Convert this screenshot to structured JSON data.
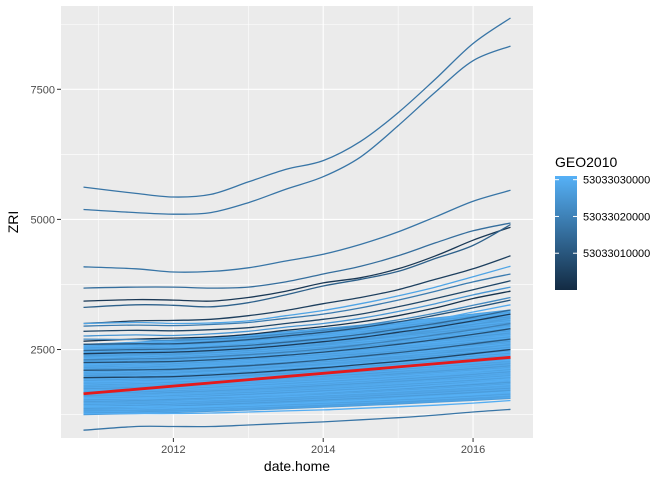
{
  "chart_data": {
    "type": "line",
    "xlabel": "date.home",
    "ylabel": "ZRI",
    "x_start": "2010-10",
    "x_end": "2016-07",
    "xlim": [
      2010.5,
      2016.8
    ],
    "ylim": [
      800,
      9100
    ],
    "x_ticks": [
      {
        "value": 2012,
        "label": "2012"
      },
      {
        "value": 2014,
        "label": "2014"
      },
      {
        "value": 2016,
        "label": "2016"
      }
    ],
    "y_ticks": [
      {
        "value": 2500,
        "label": "2500"
      },
      {
        "value": 5000,
        "label": "5000"
      },
      {
        "value": 7500,
        "label": "7500"
      }
    ],
    "grid": true,
    "legend": {
      "title": "GEO2010",
      "position": "right",
      "type": "colorbar",
      "colors": [
        "#132B43",
        "#56B1F7"
      ],
      "range": [
        53033000000,
        53033031000
      ],
      "labels": [
        {
          "value": 53033010000,
          "label": "53033010000"
        },
        {
          "value": 53033020000,
          "label": "53033020000"
        },
        {
          "value": 53033030000,
          "label": "53033030000"
        }
      ]
    },
    "highlight": {
      "name": "",
      "color": "#e41a1c",
      "start": 1650,
      "end": 2350
    },
    "x_knots": [
      2010.8,
      2011.5,
      2012.0,
      2012.5,
      2013.0,
      2013.5,
      2014.0,
      2014.5,
      2015.0,
      2015.5,
      2016.0,
      2016.5
    ],
    "series": [
      {
        "color_value": 0.55,
        "values": [
          5620,
          5500,
          5430,
          5480,
          5720,
          5960,
          6130,
          6500,
          7050,
          7700,
          8380,
          8870
        ]
      },
      {
        "color_value": 0.55,
        "values": [
          5190,
          5130,
          5100,
          5130,
          5320,
          5580,
          5820,
          6200,
          6800,
          7450,
          8050,
          8330
        ]
      },
      {
        "color_value": 0.55,
        "values": [
          4090,
          4050,
          3990,
          4000,
          4070,
          4200,
          4330,
          4520,
          4760,
          5050,
          5350,
          5560
        ]
      },
      {
        "color_value": 0.1,
        "values": [
          3430,
          3460,
          3450,
          3430,
          3500,
          3620,
          3780,
          3880,
          4050,
          4300,
          4600,
          4850
        ]
      },
      {
        "color_value": 0.5,
        "values": [
          3680,
          3700,
          3700,
          3680,
          3700,
          3800,
          3950,
          4100,
          4300,
          4550,
          4780,
          4930
        ]
      },
      {
        "color_value": 0.4,
        "values": [
          3310,
          3360,
          3350,
          3320,
          3400,
          3550,
          3720,
          3850,
          4000,
          4250,
          4500,
          4900
        ]
      },
      {
        "color_value": 0.15,
        "values": [
          3000,
          3050,
          3060,
          3080,
          3150,
          3250,
          3380,
          3500,
          3650,
          3850,
          4050,
          4300
        ]
      },
      {
        "color_value": 0.9,
        "values": [
          3000,
          3020,
          3000,
          3010,
          3050,
          3150,
          3250,
          3380,
          3530,
          3700,
          3900,
          4100
        ]
      },
      {
        "color_value": 0.6,
        "values": [
          2950,
          2970,
          2960,
          2980,
          3020,
          3100,
          3180,
          3300,
          3450,
          3620,
          3800,
          3950
        ]
      },
      {
        "color_value": 0.2,
        "values": [
          2850,
          2870,
          2860,
          2880,
          2920,
          3000,
          3080,
          3180,
          3320,
          3480,
          3650,
          3820
        ]
      },
      {
        "color_value": 0.8,
        "values": [
          2760,
          2780,
          2770,
          2800,
          2850,
          2930,
          3000,
          3100,
          3230,
          3380,
          3550,
          3700
        ]
      },
      {
        "color_value": 0.05,
        "values": [
          2660,
          2700,
          2720,
          2740,
          2790,
          2870,
          2940,
          3030,
          3150,
          3300,
          3480,
          3620
        ]
      },
      {
        "color_value": 0.7,
        "values": [
          2700,
          2690,
          2680,
          2700,
          2740,
          2800,
          2870,
          2960,
          3070,
          3200,
          3350,
          3500
        ]
      },
      {
        "color_value": 0.3,
        "values": [
          2600,
          2610,
          2610,
          2640,
          2690,
          2760,
          2830,
          2920,
          3030,
          3160,
          3300,
          3450
        ]
      },
      {
        "color_value": 0.95,
        "values": [
          2550,
          2560,
          2570,
          2600,
          2640,
          2700,
          2770,
          2860,
          2960,
          3080,
          3220,
          3360
        ]
      },
      {
        "color_value": 0.45,
        "values": [
          2480,
          2500,
          2510,
          2540,
          2580,
          2640,
          2710,
          2790,
          2890,
          3000,
          3120,
          3260
        ]
      },
      {
        "color_value": 0.12,
        "values": [
          2420,
          2440,
          2450,
          2480,
          2520,
          2580,
          2650,
          2730,
          2830,
          2930,
          3050,
          3180
        ]
      },
      {
        "color_value": 0.85,
        "values": [
          2380,
          2400,
          2410,
          2440,
          2480,
          2540,
          2600,
          2680,
          2770,
          2870,
          2980,
          3100
        ]
      },
      {
        "color_value": 0.65,
        "values": [
          2300,
          2320,
          2330,
          2360,
          2400,
          2450,
          2510,
          2590,
          2680,
          2780,
          2880,
          3000
        ]
      },
      {
        "color_value": 0.25,
        "values": [
          2250,
          2260,
          2270,
          2300,
          2340,
          2390,
          2450,
          2520,
          2600,
          2690,
          2790,
          2900
        ]
      },
      {
        "color_value": 0.92,
        "values": [
          2180,
          2190,
          2200,
          2230,
          2270,
          2320,
          2380,
          2450,
          2530,
          2610,
          2700,
          2800
        ]
      },
      {
        "color_value": 0.35,
        "values": [
          2100,
          2110,
          2120,
          2150,
          2190,
          2240,
          2300,
          2370,
          2440,
          2520,
          2610,
          2700
        ]
      },
      {
        "color_value": 0.88,
        "values": [
          2030,
          2040,
          2050,
          2080,
          2120,
          2170,
          2220,
          2280,
          2350,
          2430,
          2510,
          2600
        ]
      },
      {
        "color_value": 0.18,
        "values": [
          1960,
          1970,
          1980,
          2010,
          2050,
          2100,
          2150,
          2210,
          2270,
          2340,
          2420,
          2500
        ]
      },
      {
        "color_value": 0.97,
        "values": [
          1880,
          1890,
          1900,
          1930,
          1960,
          2000,
          2050,
          2100,
          2160,
          2230,
          2300,
          2380
        ]
      },
      {
        "color_value": 0.93,
        "values": [
          1800,
          1810,
          1820,
          1840,
          1870,
          1910,
          1950,
          2000,
          2060,
          2120,
          2190,
          2260
        ]
      },
      {
        "color_value": 0.96,
        "values": [
          1720,
          1720,
          1730,
          1750,
          1780,
          1820,
          1860,
          1900,
          1950,
          2010,
          2070,
          2140
        ]
      },
      {
        "color_value": 0.94,
        "values": [
          1640,
          1640,
          1650,
          1670,
          1700,
          1730,
          1770,
          1810,
          1860,
          1910,
          1970,
          2030
        ]
      },
      {
        "color_value": 0.98,
        "values": [
          1560,
          1560,
          1570,
          1590,
          1610,
          1640,
          1680,
          1720,
          1760,
          1810,
          1860,
          1920
        ]
      },
      {
        "color_value": 0.91,
        "values": [
          1480,
          1480,
          1490,
          1500,
          1520,
          1550,
          1580,
          1620,
          1660,
          1700,
          1750,
          1800
        ]
      },
      {
        "color_value": 0.99,
        "values": [
          1400,
          1400,
          1400,
          1410,
          1430,
          1460,
          1490,
          1520,
          1560,
          1600,
          1640,
          1690
        ]
      },
      {
        "color_value": 0.89,
        "values": [
          1330,
          1330,
          1330,
          1340,
          1360,
          1380,
          1410,
          1440,
          1470,
          1510,
          1550,
          1600
        ]
      },
      {
        "color_value": 0.97,
        "values": [
          1270,
          1270,
          1270,
          1280,
          1300,
          1320,
          1340,
          1370,
          1400,
          1430,
          1470,
          1520
        ]
      },
      {
        "color_value": 0.55,
        "values": [
          950,
          1020,
          1020,
          1020,
          1050,
          1080,
          1110,
          1150,
          1190,
          1240,
          1300,
          1350
        ]
      }
    ]
  }
}
